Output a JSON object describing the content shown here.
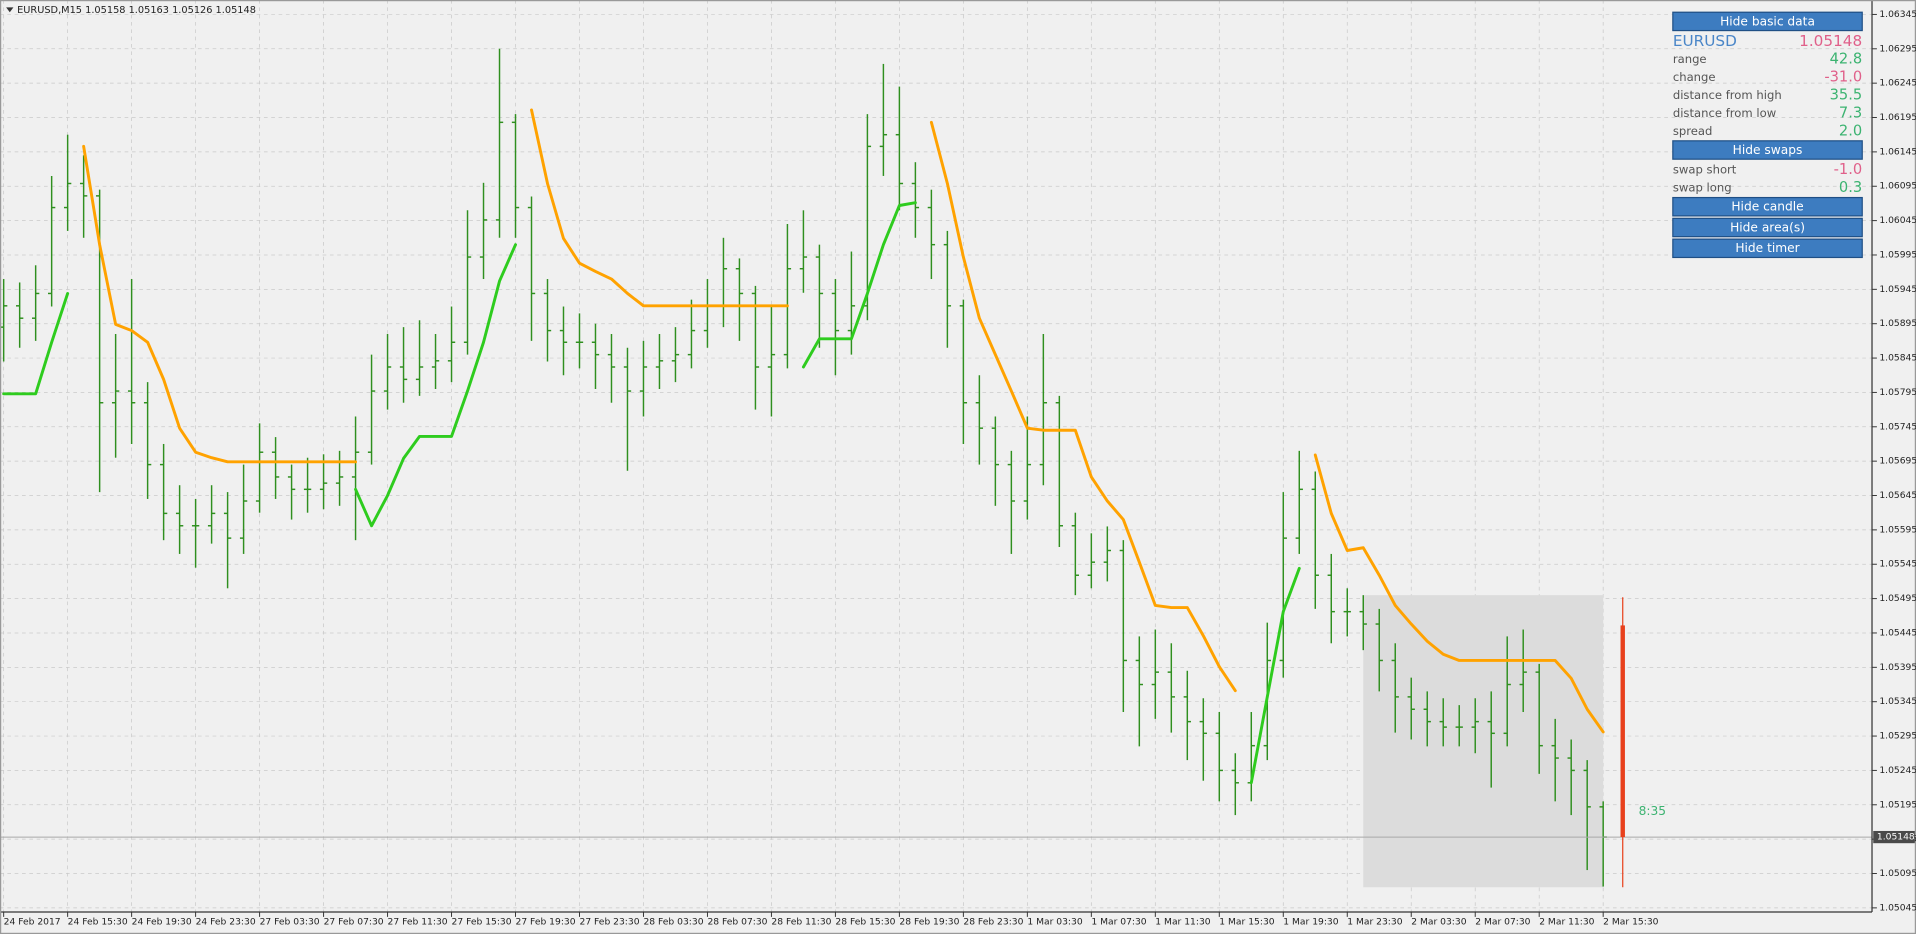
{
  "chart_data": {
    "type": "ohlc",
    "title": "EURUSD,M15  1.05158 1.05163 1.05126 1.05148",
    "bar_color": "#2f8f1f",
    "grid": true,
    "ylim": [
      1.05039,
      1.06366
    ],
    "yticks": [
      1.06345,
      1.06295,
      1.06245,
      1.06195,
      1.06145,
      1.06095,
      1.06045,
      1.05995,
      1.05945,
      1.05895,
      1.05845,
      1.05795,
      1.05745,
      1.05695,
      1.05645,
      1.05595,
      1.05545,
      1.05495,
      1.05445,
      1.05395,
      1.05345,
      1.05295,
      1.05245,
      1.05195,
      1.05145,
      1.05095,
      1.05045
    ],
    "categories": [
      "24 Feb 2017",
      null,
      null,
      null,
      "24 Feb 15:30",
      null,
      null,
      null,
      "24 Feb 19:30",
      null,
      null,
      null,
      "24 Feb 23:30",
      null,
      null,
      null,
      "27 Feb 03:30",
      null,
      null,
      null,
      "27 Feb 07:30",
      null,
      null,
      null,
      "27 Feb 11:30",
      null,
      null,
      null,
      "27 Feb 15:30",
      null,
      null,
      null,
      "27 Feb 19:30",
      null,
      null,
      null,
      "27 Feb 23:30",
      null,
      null,
      null,
      "28 Feb 03:30",
      null,
      null,
      null,
      "28 Feb 07:30",
      null,
      null,
      null,
      "28 Feb 11:30",
      null,
      null,
      null,
      "28 Feb 15:30",
      null,
      null,
      null,
      "28 Feb 19:30",
      null,
      null,
      null,
      "28 Feb 23:30",
      null,
      null,
      null,
      "1 Mar 03:30",
      null,
      null,
      null,
      "1 Mar 07:30",
      null,
      null,
      null,
      "1 Mar 11:30",
      null,
      null,
      null,
      "1 Mar 15:30",
      null,
      null,
      null,
      "1 Mar 19:30",
      null,
      null,
      null,
      "1 Mar 23:30",
      null,
      null,
      null,
      "2 Mar 03:30",
      null,
      null,
      null,
      "2 Mar 07:30",
      null,
      null,
      null,
      "2 Mar 11:30",
      null,
      null,
      null,
      "2 Mar 15:30"
    ],
    "open": [
      1.0589,
      1.05921,
      1.05903,
      1.05939,
      1.06064,
      1.06099,
      1.06081,
      1.0578,
      1.05797,
      1.0578,
      1.0569,
      1.05619,
      1.05601,
      1.05601,
      1.05619,
      1.05583,
      1.05637,
      1.05708,
      1.05672,
      1.05654,
      1.05654,
      1.05663,
      1.05672,
      1.05708,
      1.05797,
      1.05832,
      1.05814,
      1.05832,
      1.05841,
      1.05868,
      1.05992,
      1.06046,
      1.06188,
      1.06064,
      1.05939,
      1.05885,
      1.05868,
      1.05868,
      1.0585,
      1.05832,
      1.05797,
      1.05832,
      1.05841,
      1.0585,
      1.05885,
      1.05921,
      1.05975,
      1.05939,
      1.05832,
      1.0585,
      1.05975,
      1.05992,
      1.05939,
      1.05885,
      1.05921,
      1.06153,
      1.0617,
      1.06099,
      1.06064,
      1.0601,
      1.05921,
      1.0578,
      1.05743,
      1.0569,
      1.05637,
      1.0569,
      1.0578,
      1.05601,
      1.05529,
      1.05548,
      1.05565,
      1.05405,
      1.0537,
      1.05388,
      1.05352,
      1.05316,
      1.05299,
      1.05245,
      1.05227,
      1.05281,
      1.05405,
      1.05583,
      1.05654,
      1.05529,
      1.05476,
      1.05476,
      1.05458,
      1.05405,
      1.05352,
      1.05334,
      1.05316,
      1.05308,
      1.05308,
      1.05316,
      1.05299,
      1.0537,
      1.05388,
      1.05281,
      1.05263,
      1.05245,
      1.05192
    ],
    "high": [
      1.0596,
      1.05955,
      1.0598,
      1.0611,
      1.0617,
      1.0614,
      1.0609,
      1.0588,
      1.0596,
      1.0581,
      1.0572,
      1.0566,
      1.0564,
      1.0566,
      1.0565,
      1.0569,
      1.0575,
      1.0573,
      1.0569,
      1.057,
      1.05705,
      1.0571,
      1.0576,
      1.0585,
      1.0588,
      1.0589,
      1.059,
      1.0588,
      1.0592,
      1.0606,
      1.061,
      1.06295,
      1.062,
      1.0608,
      1.0596,
      1.0592,
      1.0591,
      1.05895,
      1.0588,
      1.0586,
      1.0587,
      1.0588,
      1.0589,
      1.0593,
      1.0596,
      1.0602,
      1.0599,
      1.0595,
      1.0592,
      1.0604,
      1.0606,
      1.0601,
      1.0596,
      1.06,
      1.062,
      1.06273,
      1.0624,
      1.0613,
      1.0609,
      1.0603,
      1.0593,
      1.0582,
      1.0576,
      1.0571,
      1.0576,
      1.0588,
      1.0579,
      1.0562,
      1.0559,
      1.056,
      1.0558,
      1.0544,
      1.0545,
      1.0543,
      1.0539,
      1.0535,
      1.0533,
      1.0527,
      1.0533,
      1.0546,
      1.0565,
      1.0571,
      1.0568,
      1.0556,
      1.0551,
      1.055,
      1.0548,
      1.0543,
      1.0538,
      1.0536,
      1.0535,
      1.0534,
      1.0535,
      1.0536,
      1.0544,
      1.0545,
      1.054,
      1.0532,
      1.0529,
      1.0526,
      1.052
    ],
    "low": [
      1.0584,
      1.0586,
      1.0587,
      1.0592,
      1.0603,
      1.0602,
      1.0565,
      1.057,
      1.0572,
      1.0564,
      1.0558,
      1.0556,
      1.0554,
      1.05575,
      1.0551,
      1.0556,
      1.0562,
      1.0564,
      1.0561,
      1.0562,
      1.05625,
      1.0563,
      1.0558,
      1.0569,
      1.0577,
      1.0578,
      1.0579,
      1.058,
      1.0581,
      1.0585,
      1.0596,
      1.0602,
      1.0602,
      1.0587,
      1.0584,
      1.0582,
      1.0583,
      1.058,
      1.0578,
      1.05681,
      1.0576,
      1.058,
      1.0581,
      1.0583,
      1.0586,
      1.0589,
      1.0587,
      1.0577,
      1.0576,
      1.0583,
      1.0594,
      1.0586,
      1.0582,
      1.0585,
      1.059,
      1.0611,
      1.0606,
      1.0602,
      1.0596,
      1.0586,
      1.0572,
      1.0569,
      1.0563,
      1.0556,
      1.0561,
      1.0566,
      1.0557,
      1.055,
      1.0551,
      1.0552,
      1.0533,
      1.0528,
      1.0532,
      1.053,
      1.0526,
      1.0523,
      1.052,
      1.0518,
      1.052,
      1.0526,
      1.0538,
      1.0556,
      1.0548,
      1.0543,
      1.0544,
      1.0542,
      1.0536,
      1.053,
      1.0529,
      1.0528,
      1.0528,
      1.0528,
      1.0527,
      1.0522,
      1.0528,
      1.0533,
      1.0524,
      1.052,
      1.0518,
      1.051,
      1.05076
    ],
    "close": [
      1.05921,
      1.05903,
      1.05939,
      1.06064,
      1.06099,
      1.06081,
      1.0578,
      1.05797,
      1.0578,
      1.0569,
      1.05619,
      1.05601,
      1.05601,
      1.05619,
      1.05583,
      1.05637,
      1.05708,
      1.05672,
      1.05654,
      1.05654,
      1.05663,
      1.05672,
      1.05708,
      1.05797,
      1.05832,
      1.05814,
      1.05832,
      1.05841,
      1.05868,
      1.05992,
      1.06046,
      1.06188,
      1.06064,
      1.05939,
      1.05885,
      1.05868,
      1.05868,
      1.0585,
      1.05832,
      1.05797,
      1.05832,
      1.05841,
      1.0585,
      1.05885,
      1.05921,
      1.05975,
      1.05939,
      1.05832,
      1.0585,
      1.05975,
      1.05992,
      1.05939,
      1.05885,
      1.05921,
      1.06153,
      1.0617,
      1.06099,
      1.06064,
      1.0601,
      1.05921,
      1.0578,
      1.05743,
      1.0569,
      1.05637,
      1.0569,
      1.0578,
      1.05601,
      1.05529,
      1.05548,
      1.05565,
      1.05405,
      1.0537,
      1.05388,
      1.05352,
      1.05316,
      1.05299,
      1.05245,
      1.05227,
      1.05281,
      1.05405,
      1.05583,
      1.05654,
      1.05529,
      1.05476,
      1.05476,
      1.05458,
      1.05405,
      1.05352,
      1.05334,
      1.05316,
      1.05308,
      1.05308,
      1.05316,
      1.05299,
      1.0537,
      1.05388,
      1.05281,
      1.05263,
      1.05245,
      1.05192,
      1.05148
    ],
    "lines": [
      {
        "color": "#ffa200",
        "values": [
          null,
          null,
          null,
          null,
          null,
          1.06153,
          1.0601,
          1.05894,
          1.05885,
          1.05868,
          1.05814,
          1.05743,
          1.05708,
          1.057,
          1.05694,
          1.05694,
          1.05694,
          1.05694,
          1.05694,
          1.05694,
          1.05694,
          1.05694,
          1.05694,
          null,
          null,
          null,
          null,
          null,
          null,
          null,
          null,
          null,
          null,
          1.06206,
          1.06099,
          1.06019,
          1.05983,
          1.05971,
          1.0596,
          1.05939,
          1.05921,
          1.05921,
          1.05921,
          1.05921,
          1.05921,
          1.05921,
          1.05921,
          1.05921,
          1.05921,
          1.05921,
          null,
          null,
          null,
          null,
          null,
          null,
          null,
          null,
          1.06188,
          1.06099,
          1.05992,
          1.05903,
          1.0585,
          1.05797,
          1.05743,
          1.0574,
          1.0574,
          1.0574,
          1.05672,
          1.05637,
          1.0561,
          1.05548,
          1.05485,
          1.05482,
          1.05482,
          1.05441,
          1.05396,
          1.05361,
          null,
          null,
          null,
          null,
          1.05704,
          1.05619,
          1.05565,
          1.05569,
          1.05529,
          1.05485,
          1.05458,
          1.05433,
          1.05414,
          1.05405,
          1.05405,
          1.05405,
          1.05405,
          1.05405,
          1.05405,
          1.05405,
          1.05379,
          1.05334,
          1.05301
        ]
      },
      {
        "color": "#2ecc1e",
        "values": [
          1.05793,
          1.05793,
          1.05793,
          1.05868,
          1.05939,
          null,
          null,
          null,
          null,
          null,
          null,
          null,
          null,
          null,
          null,
          null,
          null,
          null,
          null,
          null,
          null,
          null,
          1.05654,
          1.05601,
          1.05645,
          1.05699,
          1.05731,
          1.05731,
          1.05731,
          1.05797,
          1.05868,
          1.05957,
          1.0601,
          null,
          null,
          null,
          null,
          null,
          null,
          null,
          null,
          null,
          null,
          null,
          null,
          null,
          null,
          null,
          null,
          null,
          1.05832,
          1.05873,
          1.05873,
          1.05873,
          1.05939,
          1.0601,
          1.06067,
          1.06071,
          null,
          null,
          null,
          null,
          null,
          null,
          null,
          null,
          null,
          null,
          null,
          null,
          null,
          null,
          null,
          null,
          null,
          null,
          null,
          null,
          1.05227,
          1.05352,
          1.05476,
          1.05539,
          null,
          null,
          null,
          null,
          null,
          null,
          null,
          null,
          null,
          null,
          null,
          null,
          null,
          null,
          null,
          null,
          null,
          null,
          null
        ]
      }
    ],
    "area": {
      "from": 85,
      "to": 100,
      "high": 1.055,
      "low": 1.05075,
      "color": "#dcdcdc"
    },
    "candle": {
      "open": 1.05456,
      "high": 1.05497,
      "low": 1.05075,
      "close": 1.05148,
      "color": "#e8401c"
    },
    "timer": "8:35",
    "current_price": 1.05148
  },
  "panel": {
    "items": [
      {
        "kind": "button",
        "text": "Hide basic data"
      },
      {
        "kind": "symbol",
        "label": "EURUSD",
        "value": "1.05148",
        "color": "#e0608a"
      },
      {
        "kind": "row",
        "label": "range",
        "value": "42.8",
        "color": "#3cb371"
      },
      {
        "kind": "row",
        "label": "change",
        "value": "-31.0",
        "color": "#e0608a"
      },
      {
        "kind": "row",
        "label": "distance from high",
        "value": "35.5",
        "color": "#3cb371"
      },
      {
        "kind": "row",
        "label": "distance from low",
        "value": "7.3",
        "color": "#3cb371"
      },
      {
        "kind": "row",
        "label": "spread",
        "value": "2.0",
        "color": "#3cb371"
      },
      {
        "kind": "button",
        "text": "Hide swaps"
      },
      {
        "kind": "row",
        "label": "swap short",
        "value": "-1.0",
        "color": "#e0608a"
      },
      {
        "kind": "row",
        "label": "swap long",
        "value": "0.3",
        "color": "#3cb371"
      },
      {
        "kind": "button",
        "text": "Hide candle"
      },
      {
        "kind": "button",
        "text": "Hide area(s)"
      },
      {
        "kind": "button",
        "text": "Hide timer"
      }
    ]
  }
}
